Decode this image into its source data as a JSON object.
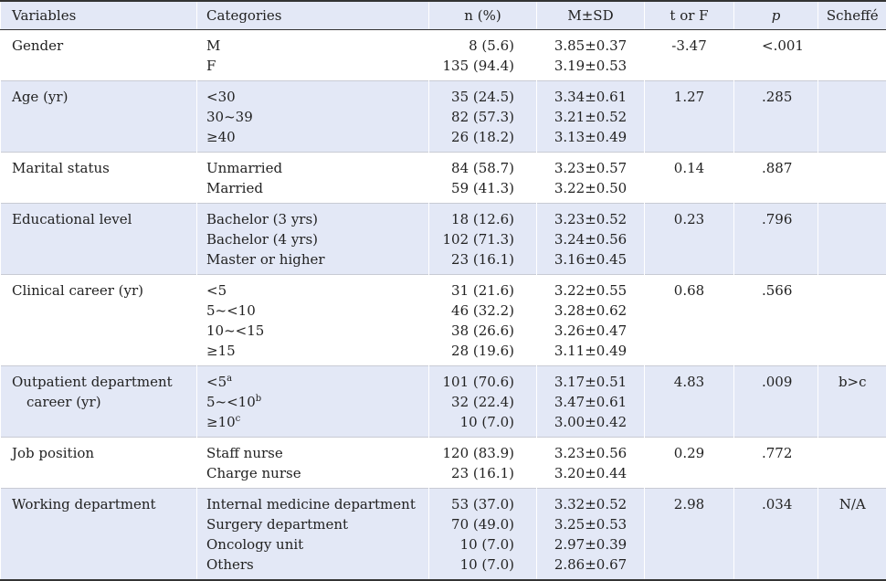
{
  "headers": {
    "variables": "Variables",
    "categories": "Categories",
    "n_pct": "n (%)",
    "msd": "M±SD",
    "t_or_f": "t or F",
    "p": "p",
    "scheffe": "Scheffé"
  },
  "rows": [
    {
      "variable": "Gender",
      "categories": [
        "M",
        "F"
      ],
      "n": [
        "8 (5.6)",
        "135 (94.4)"
      ],
      "msd": [
        "3.85±0.37",
        "3.19±0.53"
      ],
      "t": "-3.47",
      "p": "<.001",
      "scheffe": ""
    },
    {
      "variable": "Age (yr)",
      "categories": [
        "<30",
        "30~39",
        "≥40"
      ],
      "n": [
        "35 (24.5)",
        "82 (57.3)",
        "26 (18.2)"
      ],
      "msd": [
        "3.34±0.61",
        "3.21±0.52",
        "3.13±0.49"
      ],
      "t": "1.27",
      "p": ".285",
      "scheffe": ""
    },
    {
      "variable": "Marital status",
      "categories": [
        "Unmarried",
        "Married"
      ],
      "n": [
        "84 (58.7)",
        "59 (41.3)"
      ],
      "msd": [
        "3.23±0.57",
        "3.22±0.50"
      ],
      "t": "0.14",
      "p": ".887",
      "scheffe": ""
    },
    {
      "variable": "Educational level",
      "categories": [
        "Bachelor (3 yrs)",
        "Bachelor (4 yrs)",
        "Master or higher"
      ],
      "n": [
        "18 (12.6)",
        "102 (71.3)",
        "23 (16.1)"
      ],
      "msd": [
        "3.23±0.52",
        "3.24±0.56",
        "3.16±0.45"
      ],
      "t": "0.23",
      "p": ".796",
      "scheffe": ""
    },
    {
      "variable": "Clinical career (yr)",
      "categories": [
        "<5",
        "5~<10",
        "10~<15",
        "≥15"
      ],
      "n": [
        "31 (21.6)",
        "46 (32.2)",
        "38 (26.6)",
        "28 (19.6)"
      ],
      "msd": [
        "3.22±0.55",
        "3.28±0.62",
        "3.26±0.47",
        "3.11±0.49"
      ],
      "t": "0.68",
      "p": ".566",
      "scheffe": ""
    },
    {
      "variable_line1": "Outpatient department",
      "variable_line2": "career (yr)",
      "categories": [
        "<5",
        "5~<10",
        "≥10"
      ],
      "category_sup": [
        "a",
        "b",
        "c"
      ],
      "n": [
        "101 (70.6)",
        "32 (22.4)",
        "10 (7.0)"
      ],
      "msd": [
        "3.17±0.51",
        "3.47±0.61",
        "3.00±0.42"
      ],
      "t": "4.83",
      "p": ".009",
      "scheffe": "b>c"
    },
    {
      "variable": "Job position",
      "categories": [
        "Staff nurse",
        "Charge nurse"
      ],
      "n": [
        "120 (83.9)",
        "23 (16.1)"
      ],
      "msd": [
        "3.23±0.56",
        "3.20±0.44"
      ],
      "t": "0.29",
      "p": ".772",
      "scheffe": ""
    },
    {
      "variable": "Working department",
      "categories": [
        "Internal medicine department",
        "Surgery department",
        "Oncology unit",
        "Others"
      ],
      "n": [
        "53 (37.0)",
        "70 (49.0)",
        "10 (7.0)",
        "10 (7.0)"
      ],
      "msd": [
        "3.32±0.52",
        "3.25±0.53",
        "2.97±0.39",
        "2.86±0.67"
      ],
      "t": "2.98",
      "p": ".034",
      "scheffe": "N/A"
    }
  ]
}
